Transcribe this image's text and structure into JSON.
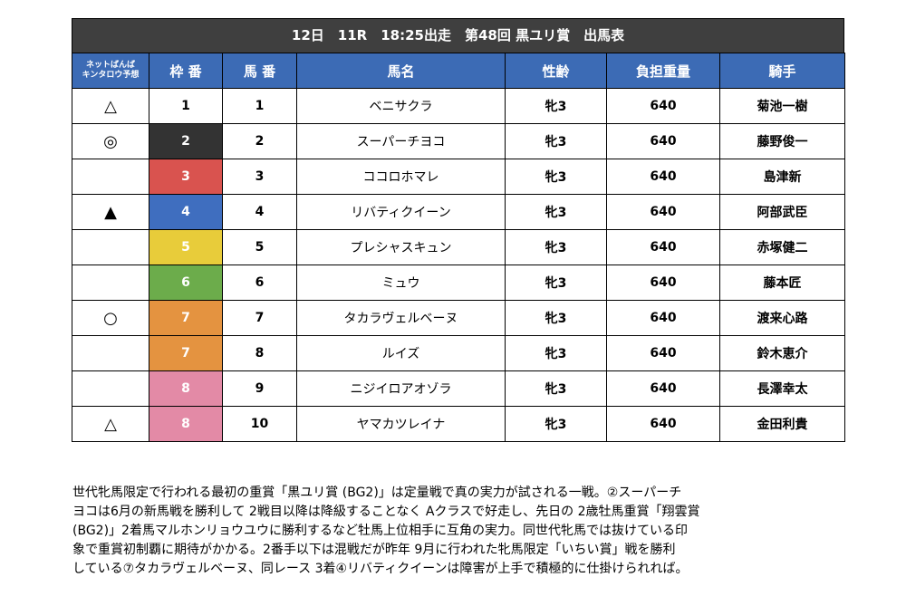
{
  "header": {
    "title": "12日　11R　18:25出走　第48回 黒ユリ賞　出馬表"
  },
  "columns": {
    "prediction": "ネットばんば\nキンタロウ予想",
    "prediction_line1": "ネットばんば",
    "prediction_line2": "キンタロウ予想",
    "waku": "枠 番",
    "umaban": "馬 番",
    "horse": "馬名",
    "sexage": "性齢",
    "weight": "負担重量",
    "jockey": "騎手"
  },
  "waku_colors": {
    "1": "#ffffff",
    "2": "#333333",
    "3": "#d9534f",
    "4": "#3f6ebf",
    "5": "#e8cc3a",
    "6": "#6cac4b",
    "7": "#e49340",
    "8": "#e38aa6"
  },
  "rows": [
    {
      "mark": "△",
      "waku": "1",
      "umaban": "1",
      "horse": "ベニサクラ",
      "sexage": "牝3",
      "weight": "640",
      "jockey": "菊池一樹"
    },
    {
      "mark": "◎",
      "waku": "2",
      "umaban": "2",
      "horse": "スーパーチヨコ",
      "sexage": "牝3",
      "weight": "640",
      "jockey": "藤野俊一"
    },
    {
      "mark": "",
      "waku": "3",
      "umaban": "3",
      "horse": "ココロホマレ",
      "sexage": "牝3",
      "weight": "640",
      "jockey": "島津新"
    },
    {
      "mark": "▲",
      "waku": "4",
      "umaban": "4",
      "horse": "リバティクイーン",
      "sexage": "牝3",
      "weight": "640",
      "jockey": "阿部武臣"
    },
    {
      "mark": "",
      "waku": "5",
      "umaban": "5",
      "horse": "プレシャスキュン",
      "sexage": "牝3",
      "weight": "640",
      "jockey": "赤塚健二"
    },
    {
      "mark": "",
      "waku": "6",
      "umaban": "6",
      "horse": "ミュウ",
      "sexage": "牝3",
      "weight": "640",
      "jockey": "藤本匠"
    },
    {
      "mark": "○",
      "waku": "7",
      "umaban": "7",
      "horse": "タカラヴェルベーヌ",
      "sexage": "牝3",
      "weight": "640",
      "jockey": "渡来心路"
    },
    {
      "mark": "",
      "waku": "7",
      "umaban": "8",
      "horse": "ルイズ",
      "sexage": "牝3",
      "weight": "640",
      "jockey": "鈴木恵介"
    },
    {
      "mark": "",
      "waku": "8",
      "umaban": "9",
      "horse": "ニジイロアオゾラ",
      "sexage": "牝3",
      "weight": "640",
      "jockey": "長澤幸太"
    },
    {
      "mark": "△",
      "waku": "8",
      "umaban": "10",
      "horse": "ヤマカツレイナ",
      "sexage": "牝3",
      "weight": "640",
      "jockey": "金田利貴"
    }
  ],
  "commentary": [
    "世代牝馬限定で行われる最初の重賞「黒ユリ賞 (BG2)」は定量戦で真の実力が試される一戦。②スーパーチ",
    "ヨコは6月の新馬戦を勝利して 2戦目以降は降級することなく Aクラスで好走し、先日の 2歳牡馬重賞「翔雲賞",
    "(BG2)」2着馬マルホンリョウユウに勝利するなど牡馬上位相手に互角の実力。同世代牝馬では抜けている印",
    "象で重賞初制覇に期待がかかる。2番手以下は混戦だが昨年 9月に行われた牝馬限定「いちい賞」戦を勝利",
    "している⑦タカラヴェルベーヌ、同レース 3着④リバティクイーンは障害が上手で積極的に仕掛けられれば。"
  ]
}
